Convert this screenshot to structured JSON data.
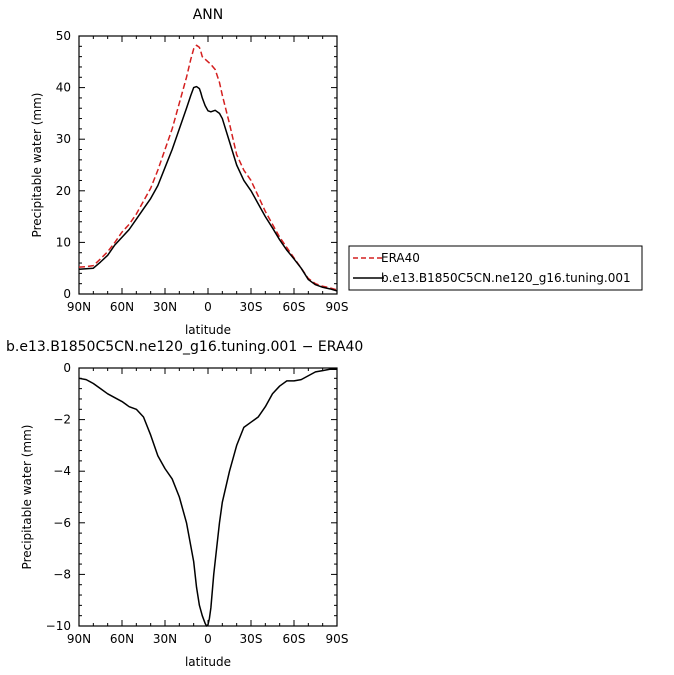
{
  "chart_data": [
    {
      "type": "line",
      "title": "ANN",
      "xlabel": "latitude",
      "ylabel": "Precipitable water (mm)",
      "xlim": [
        90,
        -90
      ],
      "ylim": [
        0,
        50
      ],
      "x_ticks": [
        {
          "value": 90,
          "label": "90N"
        },
        {
          "value": 60,
          "label": "60N"
        },
        {
          "value": 30,
          "label": "30N"
        },
        {
          "value": 0,
          "label": "0"
        },
        {
          "value": -30,
          "label": "30S"
        },
        {
          "value": -60,
          "label": "60S"
        },
        {
          "value": -90,
          "label": "90S"
        }
      ],
      "y_ticks": [
        {
          "value": 0,
          "label": "0"
        },
        {
          "value": 10,
          "label": "10"
        },
        {
          "value": 20,
          "label": "20"
        },
        {
          "value": 30,
          "label": "30"
        },
        {
          "value": 40,
          "label": "40"
        },
        {
          "value": 50,
          "label": "50"
        }
      ],
      "grid": false,
      "legend_position": "right",
      "series": [
        {
          "name": "ERA40",
          "color": "#d42020",
          "dash": "dashed",
          "x": [
            90,
            85,
            80,
            75,
            70,
            65,
            60,
            55,
            50,
            45,
            40,
            35,
            30,
            25,
            20,
            15,
            12,
            10,
            8,
            6,
            5,
            4,
            2,
            0,
            -2,
            -5,
            -8,
            -10,
            -15,
            -20,
            -25,
            -30,
            -35,
            -40,
            -45,
            -50,
            -55,
            -60,
            -65,
            -70,
            -75,
            -80,
            -85,
            -90
          ],
          "y": [
            5.2,
            5.3,
            5.5,
            6.8,
            8.2,
            10.0,
            12.0,
            13.5,
            15.5,
            18.0,
            20.5,
            24.0,
            28.0,
            32.0,
            37.0,
            42.0,
            45.5,
            47.5,
            48.2,
            47.8,
            47.0,
            46.0,
            45.5,
            45.0,
            44.5,
            43.5,
            41.0,
            38.5,
            33.0,
            27.0,
            24.0,
            22.0,
            19.0,
            16.0,
            13.5,
            11.0,
            9.0,
            7.0,
            5.0,
            3.0,
            2.0,
            1.5,
            1.2,
            0.8
          ]
        },
        {
          "name": "b.e13.B1850C5CN.ne120_g16.tuning.001",
          "color": "#000000",
          "dash": "solid",
          "x": [
            90,
            85,
            80,
            75,
            70,
            65,
            60,
            55,
            50,
            45,
            40,
            35,
            30,
            25,
            20,
            15,
            12,
            10,
            8,
            6,
            5,
            4,
            2,
            0,
            -2,
            -5,
            -8,
            -10,
            -15,
            -20,
            -25,
            -30,
            -35,
            -40,
            -45,
            -50,
            -55,
            -60,
            -65,
            -70,
            -75,
            -80,
            -85,
            -90
          ],
          "y": [
            4.8,
            4.9,
            5.0,
            6.2,
            7.5,
            9.5,
            11.0,
            12.5,
            14.5,
            16.5,
            18.5,
            21.0,
            24.5,
            28.0,
            32.0,
            36.0,
            38.5,
            40.0,
            40.2,
            39.8,
            39.0,
            38.0,
            36.5,
            35.5,
            35.3,
            35.6,
            35.0,
            34.0,
            29.5,
            25.0,
            22.0,
            20.0,
            17.5,
            15.0,
            12.8,
            10.5,
            8.5,
            6.8,
            5.0,
            2.8,
            1.8,
            1.3,
            1.0,
            0.6
          ]
        }
      ]
    },
    {
      "type": "line",
      "title": "b.e13.B1850C5CN.ne120_g16.tuning.001 − ERA40",
      "xlabel": "latitude",
      "ylabel": "Precipitable water (mm)",
      "xlim": [
        90,
        -90
      ],
      "ylim": [
        -10,
        0
      ],
      "x_ticks": [
        {
          "value": 90,
          "label": "90N"
        },
        {
          "value": 60,
          "label": "60N"
        },
        {
          "value": 30,
          "label": "30N"
        },
        {
          "value": 0,
          "label": "0"
        },
        {
          "value": -30,
          "label": "30S"
        },
        {
          "value": -60,
          "label": "60S"
        },
        {
          "value": -90,
          "label": "90S"
        }
      ],
      "y_ticks": [
        {
          "value": 0,
          "label": "0"
        },
        {
          "value": -2,
          "label": "−2"
        },
        {
          "value": -4,
          "label": "−4"
        },
        {
          "value": -6,
          "label": "−6"
        },
        {
          "value": -8,
          "label": "−8"
        },
        {
          "value": -10,
          "label": "−10"
        }
      ],
      "grid": false,
      "series": [
        {
          "color": "#000000",
          "dash": "solid",
          "x": [
            90,
            85,
            80,
            75,
            70,
            65,
            60,
            55,
            50,
            45,
            40,
            35,
            32,
            30,
            25,
            20,
            15,
            10,
            8,
            6,
            4,
            2,
            1,
            0,
            -1,
            -2,
            -4,
            -6,
            -8,
            -10,
            -15,
            -20,
            -25,
            -30,
            -35,
            -40,
            -45,
            -50,
            -55,
            -60,
            -65,
            -70,
            -75,
            -80,
            -85,
            -90
          ],
          "y": [
            -0.4,
            -0.45,
            -0.6,
            -0.8,
            -1.0,
            -1.15,
            -1.3,
            -1.5,
            -1.6,
            -1.9,
            -2.6,
            -3.4,
            -3.7,
            -3.9,
            -4.3,
            -5.0,
            -6.0,
            -7.5,
            -8.5,
            -9.2,
            -9.6,
            -9.9,
            -10.0,
            -9.95,
            -9.7,
            -9.3,
            -8.0,
            -7.0,
            -6.0,
            -5.2,
            -4.0,
            -3.0,
            -2.3,
            -2.1,
            -1.9,
            -1.5,
            -1.0,
            -0.7,
            -0.5,
            -0.5,
            -0.45,
            -0.3,
            -0.15,
            -0.1,
            -0.05,
            -0.05
          ]
        }
      ]
    }
  ]
}
